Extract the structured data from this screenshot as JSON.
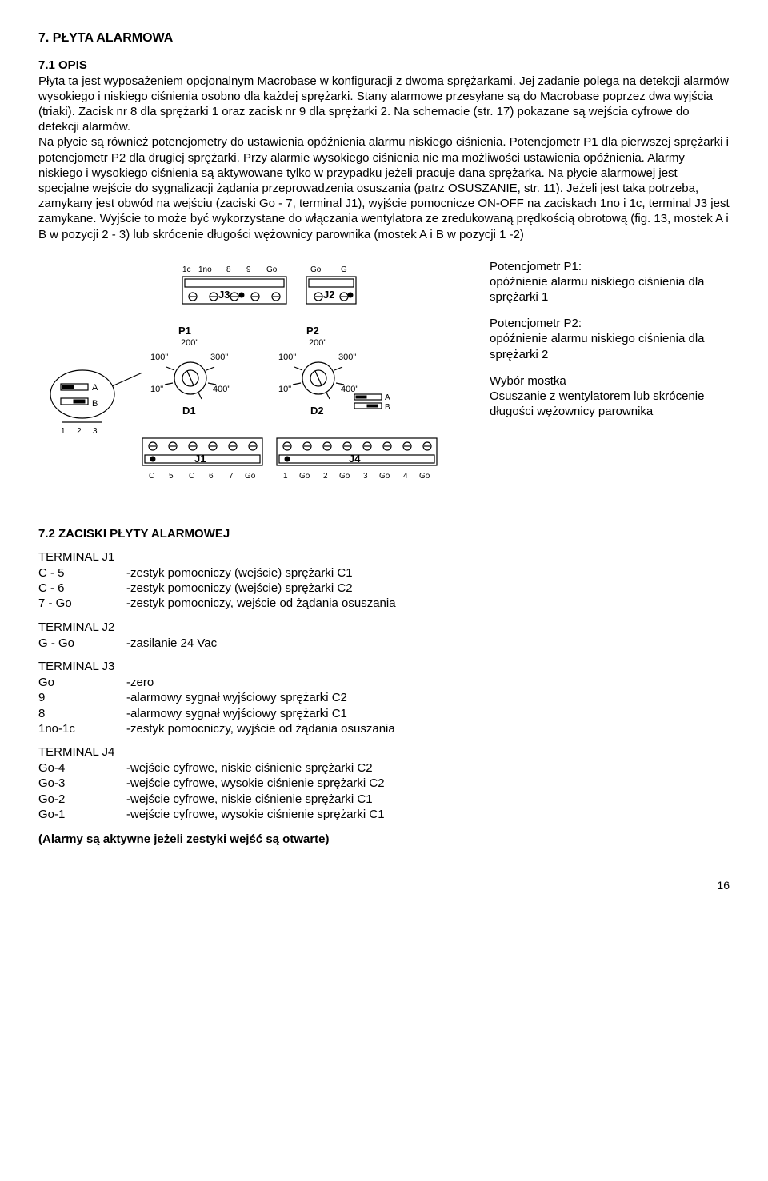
{
  "heading_main": "7. PŁYTA ALARMOWA",
  "sub_opis": "7.1 OPIS",
  "body_paragraph": "Płyta ta jest wyposażeniem opcjonalnym Macrobase w konfiguracji z dwoma sprężarkami. Jej zadanie polega na detekcji alarmów wysokiego i niskiego ciśnienia osobno dla każdej sprężarki. Stany alarmowe przesyłane są do Macrobase poprzez dwa wyjścia (triaki). Zacisk nr 8 dla sprężarki 1 oraz zacisk nr 9 dla sprężarki 2. Na schemacie (str. 17) pokazane są wejścia cyfrowe do detekcji alarmów.\nNa płycie są również potencjometry do ustawienia opóźnienia alarmu niskiego ciśnienia. Potencjometr P1 dla pierwszej sprężarki i potencjometr P2 dla drugiej sprężarki. Przy alarmie wysokiego ciśnienia nie ma możliwości ustawienia opóźnienia. Alarmy niskiego i wysokiego ciśnienia są aktywowane tylko w przypadku jeżeli pracuje dana sprężarka. Na płycie alarmowej jest specjalne wejście do sygnalizacji żądania przeprowadzenia osuszania (patrz OSUSZANIE, str. 11). Jeżeli jest taka potrzeba, zamykany jest obwód na wejściu (zaciski Go - 7, terminal J1), wyjście pomocnicze ON-OFF na zaciskach 1no i 1c, terminal J3 jest zamykane. Wyjście to może być wykorzystane do włączania wentylatora ze zredukowaną prędkością obrotową (fig. 13, mostek A i  B w pozycji 2 - 3) lub skrócenie długości wężownicy parownika (mostek A i B w pozycji 1 -2)",
  "side": {
    "p1_title": "Potencjometr P1:",
    "p1_desc": "opóźnienie alarmu niskiego ciśnienia dla sprężarki 1",
    "p2_title": "Potencjometr P2:",
    "p2_desc": "opóźnienie alarmu niskiego ciśnienia dla sprężarki 2",
    "bridge_title": "Wybór mostka",
    "bridge_desc": "Osuszanie z wentylatorem lub skrócenie długości wężownicy parownika"
  },
  "section2_heading": "7.2 ZACISKI PŁYTY ALARMOWEJ",
  "terminals": [
    {
      "title": "TERMINAL J1",
      "rows": [
        [
          "C - 5",
          "-zestyk pomocniczy (wejście) sprężarki C1"
        ],
        [
          "C - 6",
          "-zestyk pomocniczy (wejście) sprężarki C2"
        ],
        [
          "7 - Go",
          "-zestyk pomocniczy, wejście od żądania osuszania"
        ]
      ]
    },
    {
      "title": "TERMINAL J2",
      "rows": [
        [
          "G - Go",
          "-zasilanie 24 Vac"
        ]
      ]
    },
    {
      "title": "TERMINAL J3",
      "rows": [
        [
          "Go",
          "-zero"
        ],
        [
          "9",
          "-alarmowy sygnał wyjściowy sprężarki C2"
        ],
        [
          "8",
          "-alarmowy sygnał wyjściowy sprężarki C1"
        ],
        [
          "1no-1c",
          "-zestyk pomocniczy, wyjście od żądania osuszania"
        ]
      ]
    },
    {
      "title": "TERMINAL J4",
      "rows": [
        [
          "Go-4",
          "-wejście cyfrowe, niskie ciśnienie sprężarki C2"
        ],
        [
          "Go-3",
          "-wejście cyfrowe, wysokie ciśnienie sprężarki C2"
        ],
        [
          "Go-2",
          "-wejście cyfrowe, niskie ciśnienie sprężarki C1"
        ],
        [
          "Go-1",
          "-wejście cyfrowe, wysokie ciśnienie sprężarki C1"
        ]
      ]
    }
  ],
  "foot_note": "(Alarmy są aktywne jeżeli zestyki wejść są otwarte)",
  "page_num": "16",
  "diagram": {
    "J3_label": "J3",
    "J2_label": "J2",
    "J1_label": "J1",
    "J4_label": "J4",
    "top_labels": [
      "1c",
      "1no",
      "8",
      "9",
      "Go",
      "Go",
      "G"
    ],
    "bottom_labels": [
      "C",
      "5",
      "C",
      "6",
      "7",
      "Go",
      "1",
      "Go",
      "2",
      "Go",
      "3",
      "Go",
      "4",
      "Go"
    ],
    "P1": "P1",
    "P2": "P2",
    "center_200": "200\"",
    "tick_100": "100\"",
    "tick_300": "300\"",
    "tick_10": "10\"",
    "tick_400": "400\"",
    "D1": "D1",
    "D2": "D2",
    "A": "A",
    "B": "B",
    "nums_123": [
      "1",
      "2",
      "3"
    ]
  }
}
